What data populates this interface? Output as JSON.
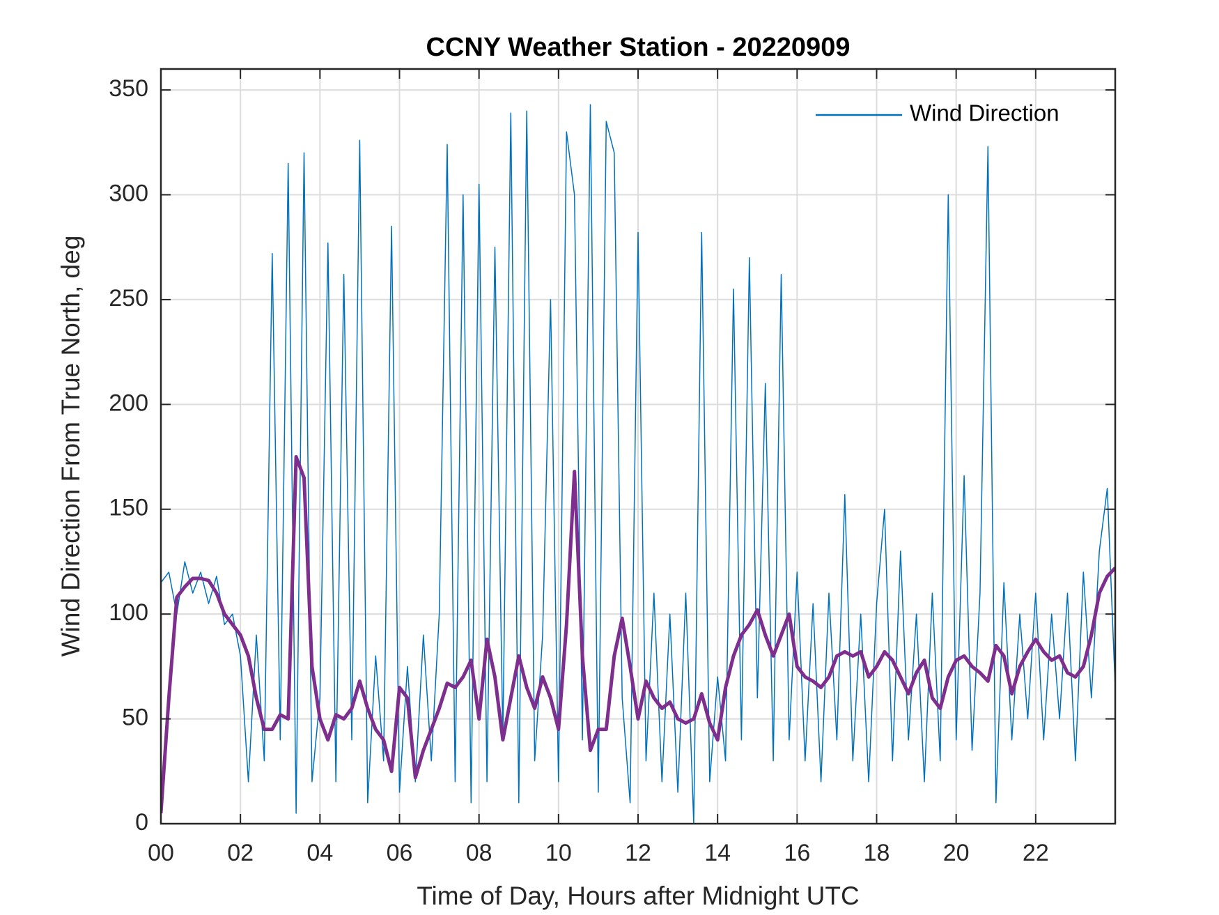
{
  "chart_data": {
    "type": "line",
    "title": "CCNY Weather Station - 20220909",
    "xlabel": "Time of Day, Hours after Midnight UTC",
    "ylabel": "Wind Direction From True North, deg",
    "xlim": [
      0,
      24
    ],
    "ylim": [
      0,
      360
    ],
    "xticks": [
      {
        "value": 0,
        "label": "00"
      },
      {
        "value": 2,
        "label": "02"
      },
      {
        "value": 4,
        "label": "04"
      },
      {
        "value": 6,
        "label": "06"
      },
      {
        "value": 8,
        "label": "08"
      },
      10,
      12,
      14,
      16,
      18,
      20,
      22
    ],
    "yticks": [
      0,
      50,
      100,
      150,
      200,
      250,
      300,
      350
    ],
    "grid": true,
    "legend": "upper right",
    "x": [
      0,
      0.2,
      0.4,
      0.6,
      0.8,
      1,
      1.2,
      1.4,
      1.6,
      1.8,
      2,
      2.2,
      2.4,
      2.6,
      2.8,
      3,
      3.2,
      3.4,
      3.6,
      3.8,
      4,
      4.2,
      4.4,
      4.6,
      4.8,
      5,
      5.2,
      5.4,
      5.6,
      5.8,
      6,
      6.2,
      6.4,
      6.6,
      6.8,
      7,
      7.2,
      7.4,
      7.6,
      7.8,
      8,
      8.2,
      8.4,
      8.6,
      8.8,
      9,
      9.2,
      9.4,
      9.6,
      9.8,
      10,
      10.2,
      10.4,
      10.6,
      10.8,
      11,
      11.2,
      11.4,
      11.6,
      11.8,
      12,
      12.2,
      12.4,
      12.6,
      12.8,
      13,
      13.2,
      13.4,
      13.6,
      13.8,
      14,
      14.2,
      14.4,
      14.6,
      14.8,
      15,
      15.2,
      15.4,
      15.6,
      15.8,
      16,
      16.2,
      16.4,
      16.6,
      16.8,
      17,
      17.2,
      17.4,
      17.6,
      17.8,
      18,
      18.2,
      18.4,
      18.6,
      18.8,
      19,
      19.2,
      19.4,
      19.6,
      19.8,
      20,
      20.2,
      20.4,
      20.6,
      20.8,
      21,
      21.2,
      21.4,
      21.6,
      21.8,
      22,
      22.2,
      22.4,
      22.6,
      22.8,
      23,
      23.2,
      23.4,
      23.6,
      23.8,
      24
    ],
    "series": [
      {
        "name": "Wind Direction",
        "color": "#0072bd",
        "width": 1.5,
        "values": [
          115,
          120,
          100,
          125,
          110,
          120,
          105,
          118,
          95,
          100,
          80,
          20,
          90,
          30,
          272,
          40,
          315,
          5,
          320,
          20,
          60,
          277,
          20,
          262,
          40,
          326,
          10,
          80,
          30,
          285,
          15,
          75,
          20,
          90,
          30,
          100,
          324,
          20,
          300,
          10,
          305,
          20,
          275,
          40,
          339,
          10,
          340,
          30,
          90,
          250,
          20,
          330,
          300,
          40,
          343,
          15,
          335,
          320,
          60,
          10,
          282,
          30,
          110,
          20,
          100,
          15,
          110,
          0,
          282,
          20,
          70,
          30,
          255,
          40,
          270,
          60,
          210,
          30,
          262,
          40,
          120,
          30,
          105,
          20,
          110,
          40,
          157,
          30,
          100,
          20,
          105,
          150,
          30,
          130,
          40,
          100,
          20,
          110,
          30,
          300,
          40,
          166,
          35,
          110,
          323,
          10,
          115,
          40,
          100,
          50,
          110,
          40,
          100,
          50,
          110,
          30,
          120,
          60,
          130,
          160,
          65
        ]
      },
      {
        "color": "#7e2f8e",
        "width": 5,
        "values": [
          5,
          60,
          108,
          113,
          117,
          117,
          116,
          110,
          100,
          95,
          90,
          80,
          60,
          45,
          45,
          52,
          50,
          175,
          165,
          75,
          50,
          40,
          52,
          50,
          55,
          68,
          55,
          45,
          40,
          25,
          65,
          60,
          22,
          35,
          45,
          55,
          67,
          65,
          70,
          78,
          50,
          88,
          70,
          40,
          60,
          80,
          65,
          55,
          70,
          60,
          45,
          95,
          168,
          80,
          35,
          45,
          45,
          80,
          98,
          75,
          50,
          68,
          60,
          55,
          58,
          50,
          48,
          50,
          62,
          48,
          40,
          65,
          80,
          90,
          95,
          102,
          90,
          80,
          90,
          100,
          75,
          70,
          68,
          65,
          70,
          80,
          82,
          80,
          82,
          70,
          75,
          82,
          78,
          70,
          62,
          72,
          78,
          60,
          55,
          70,
          78,
          80,
          75,
          72,
          68,
          85,
          80,
          62,
          75,
          82,
          88,
          82,
          78,
          80,
          72,
          70,
          75,
          90,
          110,
          118,
          122
        ]
      }
    ]
  }
}
